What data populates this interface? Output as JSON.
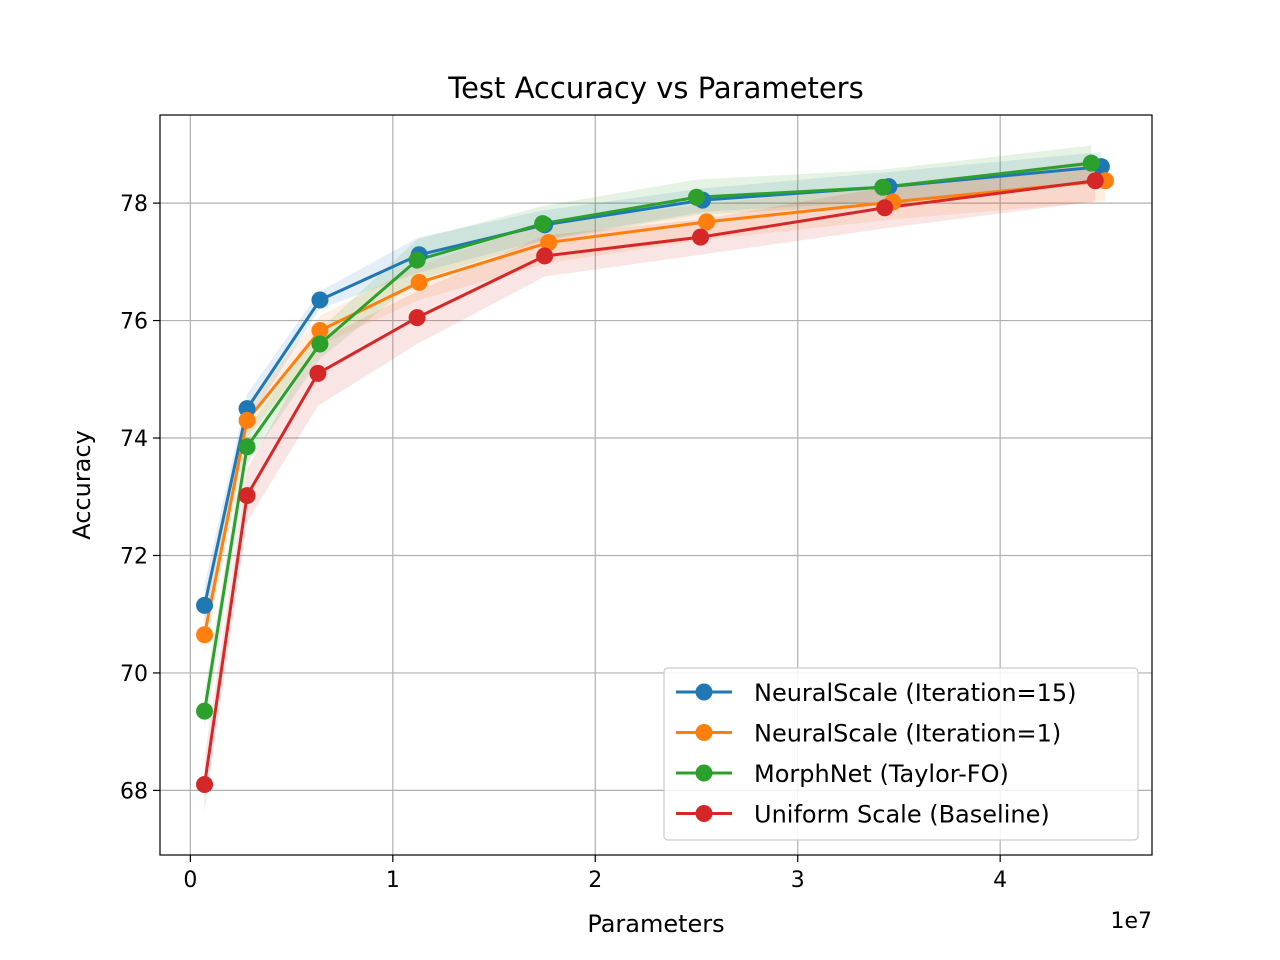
{
  "chart_data": {
    "type": "line",
    "title": "Test Accuracy vs Parameters",
    "xlabel": "Parameters",
    "ylabel": "Accuracy",
    "x_offset_label": "1e7",
    "xlim": [
      -0.15,
      4.75
    ],
    "ylim": [
      66.9,
      79.5
    ],
    "x_ticks": [
      0,
      1,
      2,
      3,
      4
    ],
    "x_tick_labels": [
      "0",
      "1",
      "2",
      "3",
      "4"
    ],
    "y_ticks": [
      68,
      70,
      72,
      74,
      76,
      78
    ],
    "y_tick_labels": [
      "68",
      "70",
      "72",
      "74",
      "76",
      "78"
    ],
    "grid": true,
    "legend_position": "lower-right",
    "series": [
      {
        "name": "NeuralScale (Iteration=15)",
        "color": "#1f77b4",
        "x": [
          0.07,
          0.28,
          0.64,
          1.13,
          1.75,
          2.53,
          3.45,
          4.5
        ],
        "y": [
          71.15,
          74.5,
          76.35,
          77.12,
          77.63,
          78.05,
          78.28,
          78.62
        ],
        "band": [
          0.35,
          0.25,
          0.15,
          0.3,
          0.25,
          0.2,
          0.25,
          0.25
        ]
      },
      {
        "name": "NeuralScale (Iteration=1)",
        "color": "#ff7f0e",
        "x": [
          0.07,
          0.28,
          0.64,
          1.13,
          1.77,
          2.55,
          3.47,
          4.52
        ],
        "y": [
          70.65,
          74.3,
          75.83,
          76.65,
          77.33,
          77.68,
          78.02,
          78.38
        ],
        "band": [
          0.35,
          0.3,
          0.25,
          0.3,
          0.35,
          0.3,
          0.3,
          0.35
        ]
      },
      {
        "name": "MorphNet (Taylor-FO)",
        "color": "#2ca02c",
        "x": [
          0.07,
          0.28,
          0.64,
          1.12,
          1.74,
          2.5,
          3.42,
          4.45
        ],
        "y": [
          69.35,
          73.85,
          75.6,
          77.03,
          77.65,
          78.1,
          78.27,
          78.68
        ],
        "band": [
          0.3,
          0.3,
          0.25,
          0.35,
          0.3,
          0.3,
          0.3,
          0.3
        ]
      },
      {
        "name": "Uniform Scale (Baseline)",
        "color": "#d62728",
        "x": [
          0.07,
          0.28,
          0.63,
          1.12,
          1.75,
          2.52,
          3.43,
          4.47
        ],
        "y": [
          68.1,
          73.02,
          75.1,
          76.05,
          77.1,
          77.42,
          77.92,
          78.38
        ],
        "band": [
          0.45,
          0.45,
          0.55,
          0.45,
          0.35,
          0.3,
          0.35,
          0.35
        ]
      }
    ]
  }
}
